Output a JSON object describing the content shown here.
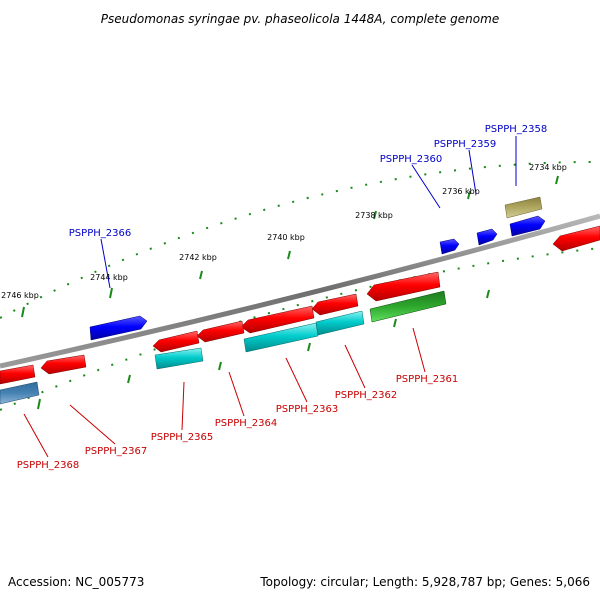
{
  "title": "Pseudomonas syringae pv. phaseolicola 1448A, complete genome",
  "footer": {
    "accession": "Accession: NC_005773",
    "stats": "Topology: circular; Length: 5,928,787 bp; Genes: 5,066"
  },
  "ticks": [
    "2734 kbp",
    "2736 kbp",
    "2738 kbp",
    "2740 kbp",
    "2742 kbp",
    "2744 kbp",
    "2746 kbp"
  ],
  "genes_top": [
    {
      "name": "PSPPH_2358"
    },
    {
      "name": "PSPPH_2359"
    },
    {
      "name": "PSPPH_2360"
    },
    {
      "name": "PSPPH_2366"
    }
  ],
  "genes_bottom": [
    {
      "name": "PSPPH_2361"
    },
    {
      "name": "PSPPH_2362"
    },
    {
      "name": "PSPPH_2363"
    },
    {
      "name": "PSPPH_2364"
    },
    {
      "name": "PSPPH_2365"
    },
    {
      "name": "PSPPH_2367"
    },
    {
      "name": "PSPPH_2368"
    }
  ],
  "colors": {
    "backbone": "#7a7a7a",
    "cds_forward": "#0000ff",
    "cds_reverse": "#ff0000",
    "rna": "#00c8c8",
    "other": "#228b22",
    "pseudo": "#a8a060",
    "misc": "#4682b4",
    "tick": "#1a8a1a"
  }
}
